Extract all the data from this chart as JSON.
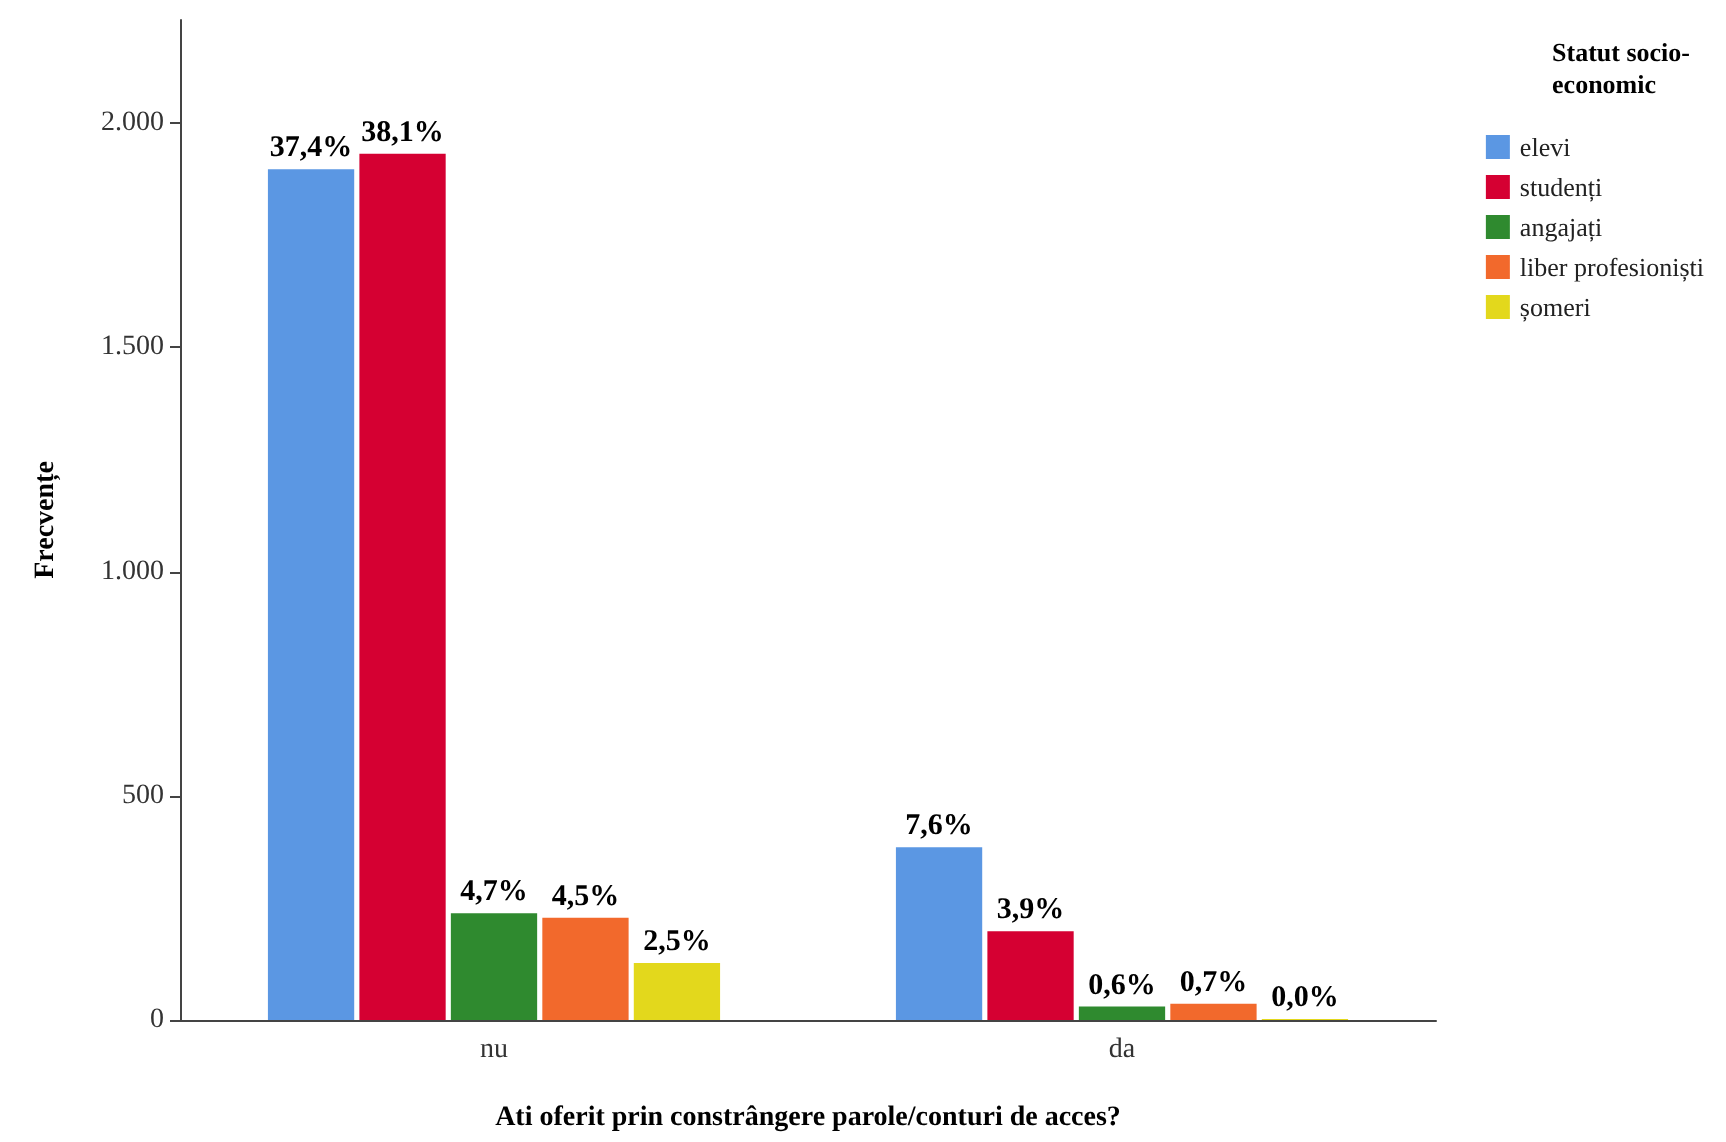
{
  "chart_data": {
    "type": "bar",
    "xlabel": "Ati oferit prin constrângere parole/conturi de acces?",
    "ylabel": "Frecvențe",
    "legend_title": "Statut socio-economic",
    "categories": [
      "nu",
      "da"
    ],
    "series": [
      {
        "name": "elevi",
        "color": "#5b97e3",
        "values": [
          1897,
          385
        ]
      },
      {
        "name": "studenți",
        "color": "#d50032",
        "values": [
          1932,
          198
        ]
      },
      {
        "name": "angajați",
        "color": "#2f8a2f",
        "values": [
          238,
          30
        ]
      },
      {
        "name": "liber profesioniști",
        "color": "#f2692c",
        "values": [
          228,
          36
        ]
      },
      {
        "name": "șomeri",
        "color": "#e3d81c",
        "values": [
          127,
          2
        ]
      }
    ],
    "annotations": [
      "37,4%",
      "38,1%",
      "4,7%",
      "4,5%",
      "2,5%",
      "7,6%",
      "3,9%",
      "0,6%",
      "0,7%",
      "0,0%"
    ],
    "ylim": [
      0,
      2230
    ],
    "yticks": [
      0,
      500,
      {
        "value": 1000,
        "label": "1.000"
      },
      {
        "value": 1500,
        "label": "1.500"
      },
      {
        "value": 2000,
        "label": "2.000"
      }
    ],
    "grid": false,
    "legend": "top right"
  }
}
